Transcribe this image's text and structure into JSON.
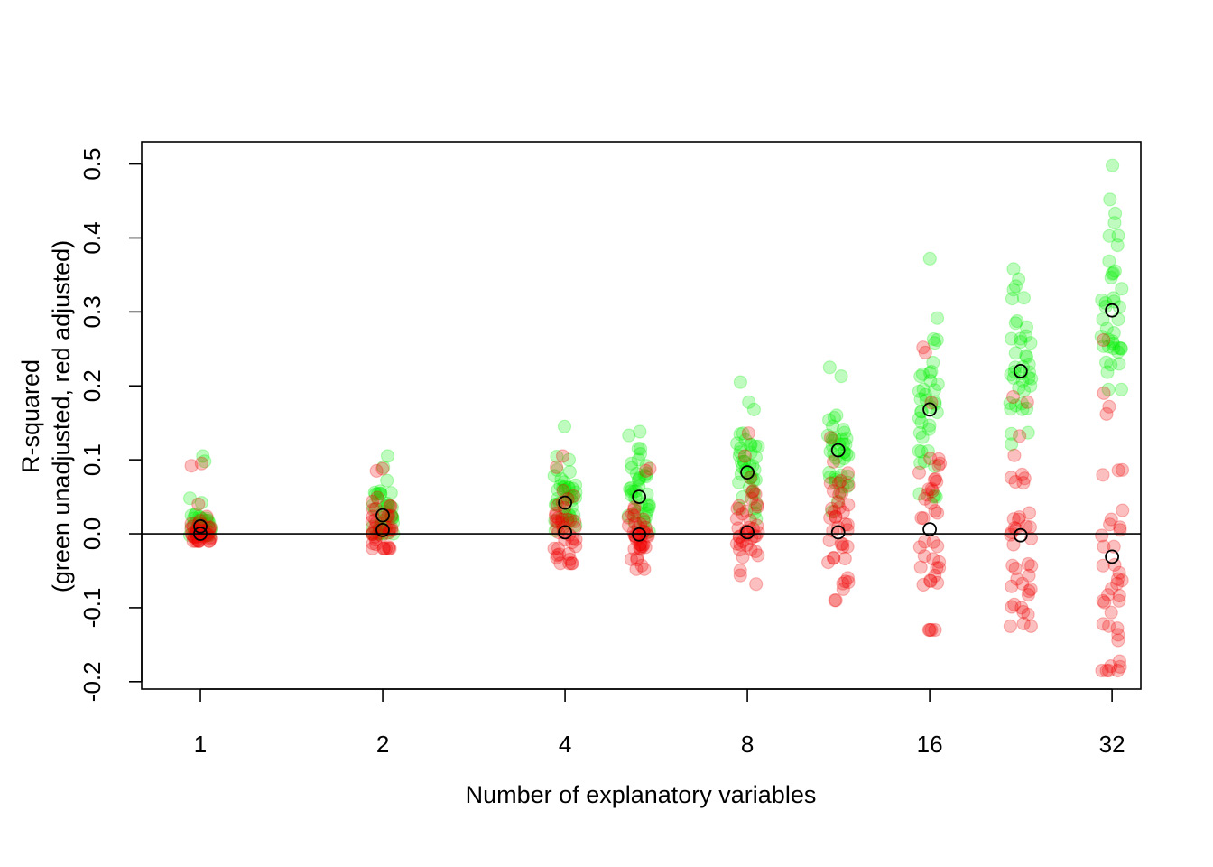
{
  "chart_data": {
    "type": "scatter",
    "xlabel": "Number of explanatory variables",
    "ylabel_lines": [
      "R-squared",
      "(green unadjusted, red adjusted)"
    ],
    "x_scale": "log2",
    "x_ticks": [
      1,
      2,
      4,
      8,
      16,
      32
    ],
    "x_tick_labels": [
      "1",
      "2",
      "4",
      "8",
      "16",
      "32"
    ],
    "y_ticks": [
      -0.2,
      -0.1,
      0.0,
      0.1,
      0.2,
      0.3,
      0.4,
      0.5
    ],
    "y_tick_labels": [
      "-0.2",
      "-0.1",
      "0.0",
      "0.1",
      "0.2",
      "0.3",
      "0.4",
      "0.5"
    ],
    "xlim": [
      0.8,
      35.7
    ],
    "ylim": [
      -0.21,
      0.53
    ],
    "reference_line_y": 0,
    "colors": {
      "unadjusted": "#00ee00",
      "adjusted": "#ee0000",
      "point_opacity": 0.25,
      "mean_marker": "#000000"
    },
    "series": [
      {
        "key": "unadjusted",
        "points": [
          {
            "x": 1,
            "mean": 0.01,
            "sd": 0.012,
            "min": -0.002,
            "max": 0.105,
            "outliers": [
              0.105,
              0.098,
              0.048,
              0.042
            ]
          },
          {
            "x": 2,
            "mean": 0.025,
            "sd": 0.02,
            "min": 0.0,
            "max": 0.105,
            "outliers": [
              0.105,
              0.09,
              0.072
            ]
          },
          {
            "x": 4,
            "mean": 0.042,
            "sd": 0.025,
            "min": 0.004,
            "max": 0.145,
            "outliers": [
              0.145,
              0.1
            ]
          },
          {
            "x": 5.3,
            "mean": 0.05,
            "sd": 0.03,
            "min": 0.003,
            "max": 0.138,
            "outliers": [
              0.138,
              0.133,
              0.115
            ]
          },
          {
            "x": 8,
            "mean": 0.083,
            "sd": 0.035,
            "min": 0.02,
            "max": 0.205,
            "outliers": [
              0.205,
              0.178,
              0.168
            ]
          },
          {
            "x": 11.3,
            "mean": 0.113,
            "sd": 0.04,
            "min": 0.03,
            "max": 0.225,
            "outliers": [
              0.225,
              0.213
            ]
          },
          {
            "x": 16,
            "mean": 0.168,
            "sd": 0.055,
            "min": 0.05,
            "max": 0.372,
            "outliers": [
              0.372,
              0.262,
              0.258
            ]
          },
          {
            "x": 22.6,
            "mean": 0.22,
            "sd": 0.055,
            "min": 0.11,
            "max": 0.358,
            "outliers": [
              0.358,
              0.33,
              0.318
            ]
          },
          {
            "x": 32,
            "mean": 0.302,
            "sd": 0.058,
            "min": 0.195,
            "max": 0.498,
            "outliers": [
              0.498,
              0.452,
              0.433,
              0.39
            ]
          }
        ]
      },
      {
        "key": "adjusted",
        "points": [
          {
            "x": 1,
            "mean": 0.0,
            "sd": 0.01,
            "min": -0.01,
            "max": 0.095,
            "outliers": [
              0.095,
              0.092,
              0.04
            ]
          },
          {
            "x": 2,
            "mean": 0.005,
            "sd": 0.02,
            "min": -0.02,
            "max": 0.088,
            "outliers": [
              0.088,
              0.085
            ]
          },
          {
            "x": 4,
            "mean": 0.002,
            "sd": 0.025,
            "min": -0.04,
            "max": 0.105,
            "outliers": [
              0.105,
              0.09
            ]
          },
          {
            "x": 5.3,
            "mean": -0.001,
            "sd": 0.03,
            "min": -0.048,
            "max": 0.088,
            "outliers": [
              0.088,
              0.085
            ]
          },
          {
            "x": 8,
            "mean": 0.002,
            "sd": 0.035,
            "min": -0.068,
            "max": 0.136,
            "outliers": [
              0.136,
              0.105,
              -0.068
            ]
          },
          {
            "x": 11.3,
            "mean": 0.002,
            "sd": 0.045,
            "min": -0.09,
            "max": 0.13,
            "outliers": [
              0.13,
              -0.09,
              -0.075
            ]
          },
          {
            "x": 16,
            "mean": 0.006,
            "sd": 0.07,
            "min": -0.13,
            "max": 0.252,
            "outliers": [
              0.252,
              0.245,
              -0.13
            ]
          },
          {
            "x": 22.6,
            "mean": -0.002,
            "sd": 0.07,
            "min": -0.125,
            "max": 0.185,
            "outliers": [
              0.185,
              0.178,
              -0.125
            ]
          },
          {
            "x": 32,
            "mean": -0.031,
            "sd": 0.085,
            "min": -0.185,
            "max": 0.262,
            "outliers": [
              0.262,
              0.19,
              0.162,
              -0.185,
              -0.18
            ]
          }
        ]
      }
    ],
    "points_per_group": 40
  }
}
